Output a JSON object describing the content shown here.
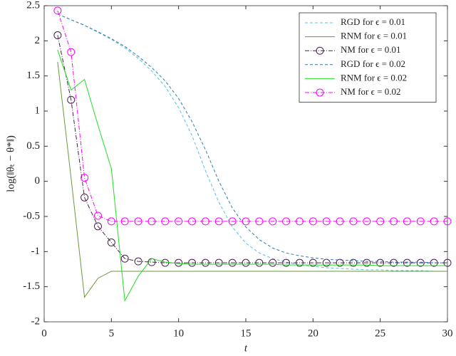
{
  "chart_data": {
    "type": "line",
    "xlabel": "t",
    "ylabel": "log(‖θₜ − θ*‖)",
    "x": [
      1,
      2,
      3,
      4,
      5,
      6,
      7,
      8,
      9,
      10,
      11,
      12,
      13,
      14,
      15,
      16,
      17,
      18,
      19,
      20,
      21,
      22,
      23,
      24,
      25,
      26,
      27,
      28,
      29,
      30
    ],
    "xlim": [
      0,
      30
    ],
    "xticks": [
      0,
      5,
      10,
      15,
      20,
      25,
      30
    ],
    "ylim": [
      -2,
      2.5
    ],
    "yticks": [
      -2,
      -1.5,
      -1,
      -0.5,
      0,
      0.5,
      1,
      1.5,
      2,
      2.5
    ],
    "legend": "upper right",
    "series": [
      {
        "name": "RGD for ϵ = 0.01",
        "color": "#55c0e0",
        "linestyle": "dashed",
        "marker": "none",
        "values": [
          2.38,
          2.3,
          2.22,
          2.12,
          2.02,
          1.9,
          1.75,
          1.57,
          1.35,
          1.05,
          0.65,
          0.15,
          -0.3,
          -0.65,
          -0.88,
          -1.02,
          -1.1,
          -1.15,
          -1.19,
          -1.21,
          -1.23,
          -1.24,
          -1.25,
          -1.26,
          -1.26,
          -1.27,
          -1.27,
          -1.27,
          -1.28,
          -1.28
        ]
      },
      {
        "name": "RNM for ϵ = 0.01",
        "color": "#6a9a3a",
        "linestyle": "solid",
        "marker": "none",
        "values": [
          1.7,
          0.05,
          -1.65,
          -1.38,
          -1.28,
          -1.28,
          -1.28,
          -1.28,
          -1.28,
          -1.28,
          -1.28,
          -1.28,
          -1.28,
          -1.28,
          -1.28,
          -1.28,
          -1.28,
          -1.28,
          -1.28,
          -1.28,
          -1.28,
          -1.28,
          -1.28,
          -1.28,
          -1.28,
          -1.28,
          -1.28,
          -1.28,
          -1.28,
          -1.28
        ]
      },
      {
        "name": "NM for ϵ = 0.01",
        "color": "#4a2050",
        "linestyle": "dashdot",
        "marker": "circle",
        "values": [
          2.08,
          1.16,
          -0.23,
          -0.64,
          -0.87,
          -1.1,
          -1.14,
          -1.15,
          -1.16,
          -1.16,
          -1.16,
          -1.16,
          -1.16,
          -1.16,
          -1.16,
          -1.16,
          -1.16,
          -1.16,
          -1.16,
          -1.16,
          -1.16,
          -1.16,
          -1.16,
          -1.16,
          -1.16,
          -1.16,
          -1.16,
          -1.16,
          -1.16,
          -1.16
        ]
      },
      {
        "name": "RGD for ϵ = 0.02",
        "color": "#2a7ab8",
        "linestyle": "dashed",
        "marker": "none",
        "values": [
          2.38,
          2.3,
          2.22,
          2.13,
          2.03,
          1.92,
          1.78,
          1.62,
          1.43,
          1.18,
          0.85,
          0.45,
          0.0,
          -0.38,
          -0.65,
          -0.83,
          -0.95,
          -1.02,
          -1.06,
          -1.09,
          -1.11,
          -1.12,
          -1.13,
          -1.14,
          -1.14,
          -1.15,
          -1.15,
          -1.15,
          -1.16,
          -1.16
        ]
      },
      {
        "name": "RNM for ϵ = 0.02",
        "color": "#22dd22",
        "linestyle": "solid",
        "marker": "none",
        "values": [
          1.87,
          1.3,
          1.45,
          0.8,
          0.18,
          -1.7,
          -1.35,
          -1.1,
          -1.15,
          -1.17,
          -1.18,
          -1.18,
          -1.18,
          -1.18,
          -1.18,
          -1.18,
          -1.18,
          -1.19,
          -1.19,
          -1.19,
          -1.19,
          -1.19,
          -1.19,
          -1.19,
          -1.2,
          -1.2,
          -1.2,
          -1.2,
          -1.2,
          -1.2
        ]
      },
      {
        "name": "NM for ϵ = 0.02",
        "color": "#ff00ff",
        "linestyle": "dashdot",
        "marker": "circle",
        "values": [
          2.43,
          1.84,
          0.05,
          -0.49,
          -0.57,
          -0.57,
          -0.57,
          -0.57,
          -0.57,
          -0.57,
          -0.57,
          -0.57,
          -0.57,
          -0.57,
          -0.57,
          -0.57,
          -0.57,
          -0.57,
          -0.57,
          -0.57,
          -0.57,
          -0.57,
          -0.57,
          -0.57,
          -0.57,
          -0.57,
          -0.57,
          -0.57,
          -0.57,
          -0.57
        ]
      }
    ]
  }
}
